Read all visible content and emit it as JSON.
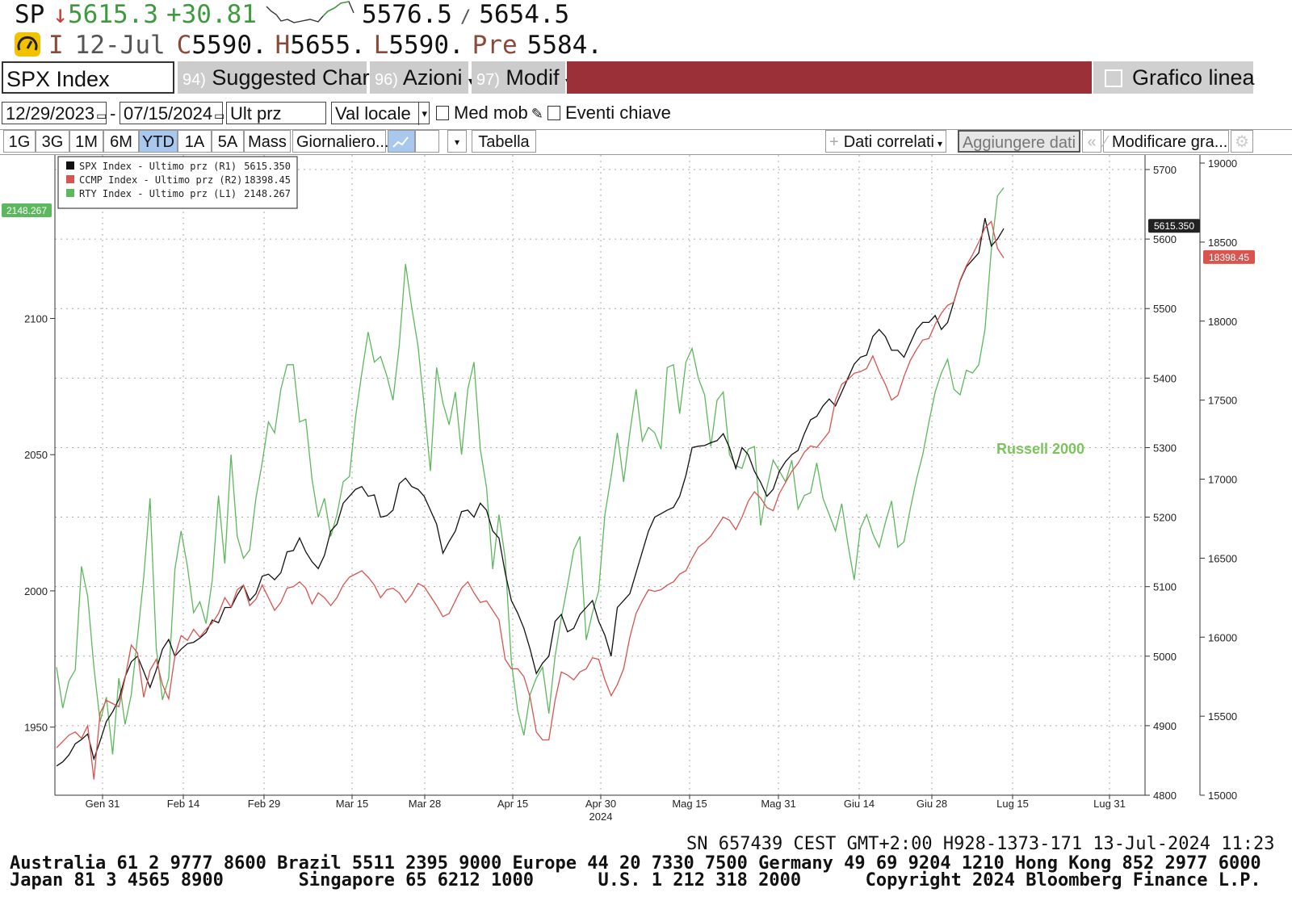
{
  "quote": {
    "ticker": "SP",
    "arrow": "↓",
    "last": "5615.3",
    "change": "+30.81",
    "low_range": "5576.5",
    "sep": "/",
    "high_range": "5654.5"
  },
  "quote2": {
    "flag": "I",
    "date": "12-Jul",
    "c_label": "C",
    "c_value": "5590.",
    "h_label": "H",
    "h_value": "5655.",
    "l_label": "L",
    "l_value": "5590.",
    "pre_label": "Pre",
    "pre_value": "5584."
  },
  "toolbar1": {
    "security": "SPX Index",
    "suggested_num": "94)",
    "suggested": "Suggested Charts",
    "azioni_num": "96)",
    "azioni": "Azioni",
    "modif_num": "97)",
    "modif": "Modif",
    "chart_type": "Grafico linea",
    "accent": "#9c3038"
  },
  "toolbar2": {
    "start_date": "12/29/2023",
    "dash": "-",
    "end_date": "07/15/2024",
    "field": "Ult prz",
    "currency": "Val locale",
    "moving_avg": "Med mob",
    "key_events": "Eventi chiave"
  },
  "toolbar3": {
    "tabs": [
      "1G",
      "3G",
      "1M",
      "6M",
      "YTD",
      "1A",
      "5A",
      "Mass"
    ],
    "active_tab": "YTD",
    "period": "Giornaliero...",
    "table": "Tabella",
    "related": "Dati correlati",
    "add_data": "Aggiungere dati",
    "modify": "Modificare gra..."
  },
  "chart_data": {
    "type": "line",
    "legend": [
      {
        "label": "SPX Index - Ultimo prz (R1)",
        "value": "5615.350",
        "color": "#111111"
      },
      {
        "label": "CCMP Index - Ultimo prz (R2)",
        "value": "18398.45",
        "color": "#d9534f"
      },
      {
        "label": "RTY Index - Ultimo prz (L1)",
        "value": "2148.267",
        "color": "#5cb85c"
      }
    ],
    "annotation": "Russell 2000",
    "x_ticks": [
      "Gen 31",
      "Feb 14",
      "Feb 29",
      "Mar 15",
      "Mar 28",
      "Apr 15",
      "Apr 30",
      "Mag 15",
      "Mag 31",
      "Giu 14",
      "Giu 28",
      "Lug 15",
      "Lug 31"
    ],
    "x_year_label": "2024",
    "left_axis": {
      "ticks": [
        1950,
        2000,
        2050,
        2100
      ],
      "range": [
        1925,
        2160
      ],
      "last_label": "2148.267"
    },
    "r1_axis": {
      "ticks": [
        4800,
        4900,
        5000,
        5100,
        5200,
        5300,
        5400,
        5500,
        5600,
        5700
      ],
      "range": [
        4800,
        5700
      ],
      "last_label": "5615.350"
    },
    "r2_axis": {
      "ticks": [
        15000,
        15500,
        16000,
        16500,
        17000,
        17500,
        18000,
        18500,
        19000
      ],
      "range": [
        15000,
        19000
      ],
      "last_label": "18398.45"
    },
    "series": [
      {
        "name": "RTY Index",
        "axis": "left",
        "color": "#5cb85c",
        "values": [
          1972,
          1957,
          1967,
          1971,
          2009,
          1998,
          1972,
          1952,
          1961,
          1940,
          1968,
          1951,
          1962,
          1983,
          2005,
          2034,
          1979,
          1960,
          1968,
          2008,
          2022,
          2009,
          1992,
          1996,
          1988,
          2004,
          2035,
          2010,
          2050,
          2020,
          2012,
          2015,
          2034,
          2047,
          2062,
          2058,
          2074,
          2083,
          2083,
          2062,
          2063,
          2041,
          2027,
          2034,
          2020,
          2028,
          2040,
          2042,
          2064,
          2080,
          2095,
          2084,
          2086,
          2079,
          2070,
          2090,
          2120,
          2104,
          2090,
          2068,
          2044,
          2082,
          2069,
          2061,
          2073,
          2050,
          2074,
          2084,
          2052,
          2038,
          2008,
          2028,
          2012,
          1974,
          1956,
          1947,
          1962,
          1968,
          1972,
          1955,
          1976,
          1990,
          2002,
          2015,
          2020,
          1982,
          1992,
          2000,
          2028,
          2042,
          2058,
          2040,
          2058,
          2074,
          2055,
          2060,
          2058,
          2052,
          2082,
          2083,
          2065,
          2084,
          2089,
          2078,
          2072,
          2053,
          2070,
          2073,
          2050,
          2046,
          2045,
          2052,
          2053,
          2024,
          2038,
          2048,
          2044,
          2040,
          2048,
          2030,
          2035,
          2036,
          2047,
          2034,
          2028,
          2022,
          2032,
          2017,
          2004,
          2023,
          2028,
          2021,
          2016,
          2025,
          2033,
          2016,
          2018,
          2030,
          2041,
          2050,
          2062,
          2073,
          2080,
          2085,
          2074,
          2072,
          2081,
          2080,
          2083,
          2096,
          2125,
          2145,
          2148
        ]
      },
      {
        "name": "SPX Index",
        "axis": "r1",
        "color": "#111111",
        "values": [
          4842,
          4848,
          4858,
          4874,
          4880,
          4888,
          4852,
          4878,
          4906,
          4920,
          4938,
          4970,
          4992,
          5000,
          4978,
          4955,
          4980,
          5010,
          5024,
          5000,
          5010,
          5018,
          5020,
          5026,
          5034,
          5052,
          5048,
          5070,
          5070,
          5088,
          5102,
          5080,
          5090,
          5115,
          5118,
          5110,
          5120,
          5150,
          5152,
          5170,
          5150,
          5136,
          5126,
          5145,
          5180,
          5190,
          5220,
          5230,
          5240,
          5244,
          5230,
          5232,
          5200,
          5202,
          5210,
          5248,
          5256,
          5244,
          5240,
          5230,
          5210,
          5190,
          5148,
          5165,
          5180,
          5208,
          5210,
          5200,
          5220,
          5210,
          5180,
          5170,
          5120,
          5080,
          5062,
          5040,
          5010,
          4975,
          4990,
          5000,
          5050,
          5060,
          5035,
          5040,
          5060,
          5070,
          5080,
          5050,
          5030,
          5000,
          5070,
          5080,
          5090,
          5120,
          5150,
          5180,
          5200,
          5205,
          5210,
          5214,
          5230,
          5260,
          5300,
          5302,
          5303,
          5307,
          5310,
          5320,
          5300,
          5270,
          5300,
          5290,
          5266,
          5250,
          5230,
          5240,
          5266,
          5280,
          5290,
          5296,
          5320,
          5340,
          5345,
          5360,
          5370,
          5360,
          5380,
          5400,
          5420,
          5430,
          5433,
          5460,
          5470,
          5460,
          5440,
          5440,
          5430,
          5450,
          5470,
          5480,
          5480,
          5490,
          5470,
          5480,
          5510,
          5540,
          5560,
          5570,
          5580,
          5630,
          5590,
          5600,
          5615
        ]
      },
      {
        "name": "CCMP Index",
        "axis": "r2",
        "color": "#d9534f",
        "values": [
          15300,
          15340,
          15380,
          15400,
          15360,
          15440,
          15100,
          15520,
          15600,
          15580,
          15560,
          15740,
          15950,
          15900,
          15620,
          15790,
          15860,
          15700,
          15610,
          15880,
          16010,
          15980,
          16050,
          16000,
          16050,
          16090,
          16150,
          16250,
          16190,
          16300,
          16330,
          16200,
          16240,
          16330,
          16250,
          16170,
          16220,
          16310,
          16320,
          16350,
          16310,
          16210,
          16280,
          16250,
          16200,
          16250,
          16330,
          16380,
          16400,
          16420,
          16380,
          16330,
          16250,
          16300,
          16310,
          16280,
          16220,
          16270,
          16340,
          16320,
          16260,
          16200,
          16130,
          16150,
          16230,
          16310,
          16350,
          16280,
          16220,
          16230,
          16170,
          16110,
          15860,
          15800,
          15800,
          15750,
          15620,
          15400,
          15350,
          15350,
          15600,
          15780,
          15760,
          15730,
          15780,
          15800,
          15870,
          15860,
          15730,
          15630,
          15700,
          15800,
          16000,
          16150,
          16230,
          16300,
          16290,
          16300,
          16330,
          16350,
          16400,
          16420,
          16500,
          16570,
          16600,
          16640,
          16700,
          16760,
          16740,
          16680,
          16760,
          16860,
          16920,
          16880,
          16820,
          16800,
          16910,
          16980,
          17050,
          17100,
          17170,
          17210,
          17200,
          17250,
          17300,
          17500,
          17600,
          17630,
          17670,
          17680,
          17700,
          17780,
          17680,
          17600,
          17500,
          17530,
          17650,
          17750,
          17820,
          17880,
          17890,
          17980,
          18050,
          18100,
          18120,
          18260,
          18350,
          18420,
          18500,
          18590,
          18630,
          18460,
          18400
        ]
      }
    ]
  },
  "footer": {
    "line1": "SN 657439 CEST GMT+2:00 H928-1373-171 13-Jul-2024 11:23",
    "line2": "Australia 61 2 9777 8600 Brazil 5511 2395 9000 Europe 44 20 7330 7500 Germany 49 69 9204 1210 Hong Kong 852 2977 6000",
    "line3": "Japan 81 3 4565 8900       Singapore 65 6212 1000      U.S. 1 212 318 2000      Copyright 2024 Bloomberg Finance L.P."
  }
}
